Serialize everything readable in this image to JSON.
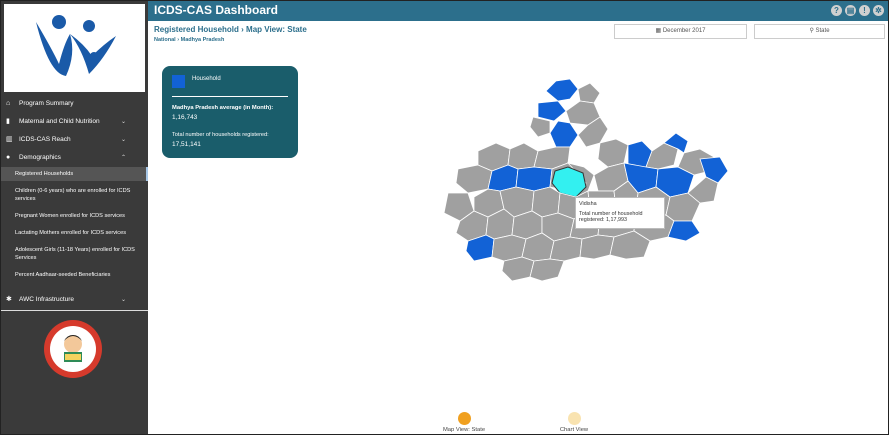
{
  "sidebar": {
    "nav": [
      {
        "label": "Program Summary",
        "icon": "home-icon",
        "has_chevron": false
      },
      {
        "label": "Maternal and Child Nutrition",
        "icon": "bottle-icon",
        "has_chevron": true
      },
      {
        "label": "ICDS-CAS Reach",
        "icon": "bar-chart-icon",
        "has_chevron": true
      },
      {
        "label": "Demographics",
        "icon": "users-icon",
        "has_chevron": true
      }
    ],
    "sub_items": [
      "Registered Households",
      "Children (0-6 years) who are enrolled for ICDS services",
      "Pregnant Women enrolled for ICDS services",
      "Lactating Mothers enrolled for ICDS services",
      "Adolescent Girls (11-18 Years) enrolled for ICDS Services",
      "Percent Aadhaar-seeded Beneficiaries"
    ],
    "awc": {
      "label": "AWC Infrastructure",
      "icon": "settings-icon"
    }
  },
  "header": {
    "title": "ICDS-CAS Dashboard",
    "icons": [
      "help-icon",
      "print-icon",
      "warning-icon",
      "gear-icon"
    ]
  },
  "page": {
    "heading": "Registered Household",
    "view": "Map View: State",
    "breadcrumb_root": "National",
    "breadcrumb_leaf": "Madhya Pradesh"
  },
  "filters": {
    "date": "December 2017",
    "location": "State"
  },
  "info_card": {
    "legend_label": "Household",
    "legend_color": "#1262d6",
    "avg_label": "Madhya Pradesh average (in Month):",
    "avg_value": "1,16,743",
    "total_label": "Total number of households registered:",
    "total_value": "17,51,141"
  },
  "tooltip": {
    "district": "Vidisha",
    "label": "Total number of household registered:",
    "value": "1,17,993"
  },
  "views": [
    {
      "label": "Map View: State",
      "color": "#f0a020",
      "active": true
    },
    {
      "label": "Chart View",
      "color": "#f9e3b0",
      "active": false
    }
  ],
  "colors": {
    "accent": "#2c6f8c",
    "district_default": "#a0a0a0",
    "district_highlight": "#1262d6",
    "district_hover": "#33f0f0"
  }
}
